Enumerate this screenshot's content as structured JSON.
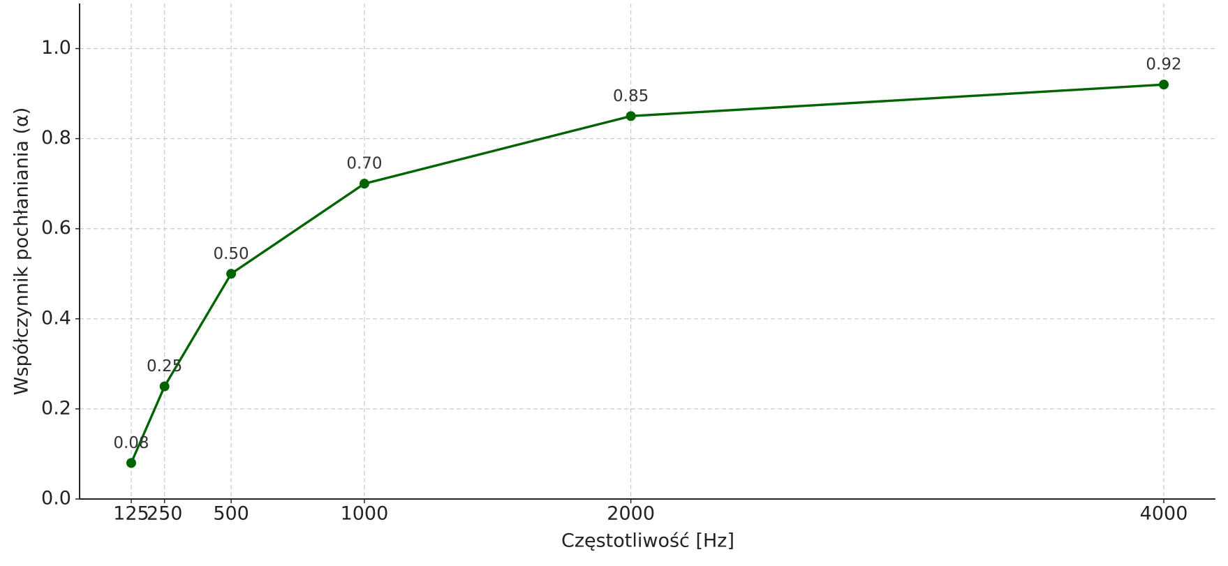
{
  "chart_data": {
    "type": "line",
    "x_label": "Częstotliwość [Hz]",
    "y_label": "Współczynnik pochłaniania (α)",
    "x": [
      125,
      250,
      500,
      1000,
      2000,
      4000
    ],
    "values": [
      0.08,
      0.25,
      0.5,
      0.7,
      0.85,
      0.92
    ],
    "value_labels": [
      "0.08",
      "0.25",
      "0.50",
      "0.70",
      "0.85",
      "0.92"
    ],
    "color": "#006400",
    "xlim": [
      -68.75,
      4193.75
    ],
    "xticks": [
      125,
      250,
      500,
      1000,
      2000,
      4000
    ],
    "ylim": [
      0,
      1.1
    ],
    "yticks": [
      {
        "value": 0,
        "label": "0.0"
      },
      {
        "value": 0.2,
        "label": "0.2"
      },
      {
        "value": 0.4,
        "label": "0.4"
      },
      {
        "value": 0.6,
        "label": "0.6"
      },
      {
        "value": 0.8,
        "label": "0.8"
      },
      {
        "value": 1.0,
        "label": "1.0"
      }
    ],
    "grid": true
  }
}
